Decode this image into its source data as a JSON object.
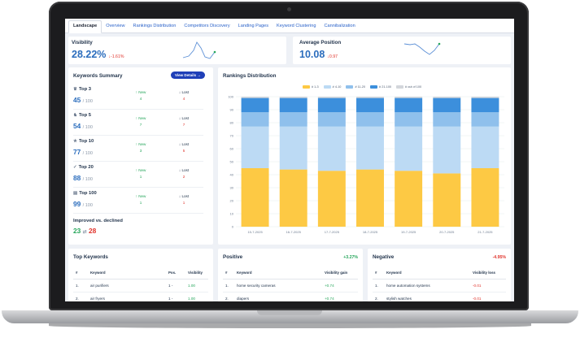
{
  "tabs": [
    "Landscape",
    "Overview",
    "Rankings Distribution",
    "Competitors Discovery",
    "Landing Pages",
    "Keyword Clustering",
    "Cannibalization"
  ],
  "visibility": {
    "label": "Visibility",
    "value": "28.22%",
    "delta": "-1.61%"
  },
  "avg_position": {
    "label": "Average Position",
    "value": "10.08",
    "delta": "0.97"
  },
  "keywords_summary": {
    "title": "Keywords Summary",
    "button": "View Details",
    "new_label": "New",
    "lost_label": "Lost",
    "rows": [
      {
        "label": "Top 3",
        "value": "45",
        "of": "/ 100",
        "new": "4",
        "lost": "4"
      },
      {
        "label": "Top 5",
        "value": "54",
        "of": "/ 100",
        "new": "7",
        "lost": "7"
      },
      {
        "label": "Top 10",
        "value": "77",
        "of": "/ 100",
        "new": "3",
        "lost": "5"
      },
      {
        "label": "Top 20",
        "value": "88",
        "of": "/ 100",
        "new": "1",
        "lost": "2"
      },
      {
        "label": "Top 100",
        "value": "99",
        "of": "/ 100",
        "new": "1",
        "lost": "1"
      }
    ],
    "improved_label": "Improved vs. declined",
    "improved": "23",
    "declined": "28"
  },
  "rankings": {
    "title": "Rankings Distribution"
  },
  "chart_data": {
    "type": "bar",
    "stacked": true,
    "categories": [
      "15-7-2025",
      "16-7-2025",
      "17-7-2025",
      "18-7-2025",
      "19-7-2025",
      "20-7-2025",
      "21-7-2025"
    ],
    "legend": [
      "# 1-3",
      "# 4-10",
      "# 11-20",
      "# 21-100",
      "# out of 100"
    ],
    "colors": [
      "#fdc944",
      "#bcdaf4",
      "#8fc0ec",
      "#3c8fdc",
      "#d3d6db"
    ],
    "series": [
      {
        "name": "# 1-3",
        "values": [
          45,
          44,
          43,
          44,
          43,
          41,
          45
        ]
      },
      {
        "name": "# 4-10",
        "values": [
          32,
          33,
          34,
          33,
          34,
          36,
          32
        ]
      },
      {
        "name": "# 11-20",
        "values": [
          11,
          11,
          11,
          11,
          11,
          11,
          11
        ]
      },
      {
        "name": "# 21-100",
        "values": [
          11,
          11,
          11,
          11,
          11,
          11,
          11
        ]
      },
      {
        "name": "# out of 100",
        "values": [
          1,
          1,
          1,
          1,
          1,
          1,
          1
        ]
      }
    ],
    "yticks": [
      0,
      10,
      20,
      30,
      40,
      50,
      60,
      70,
      80,
      90,
      100
    ],
    "ylim": [
      0,
      100
    ]
  },
  "top_keywords": {
    "title": "Top Keywords",
    "headers": [
      "#",
      "Keyword",
      "Pos.",
      "Visibility"
    ],
    "rows": [
      {
        "n": "1.",
        "kw": "air purifiers",
        "pos": "1 -",
        "vis": "1.00"
      },
      {
        "n": "2.",
        "kw": "air fryers",
        "pos": "1 -",
        "vis": "1.00"
      }
    ]
  },
  "positive": {
    "title": "Positive",
    "delta": "+3.27%",
    "headers": [
      "#",
      "Keyword",
      "Visibility gain"
    ],
    "rows": [
      {
        "n": "1.",
        "kw": "home security cameras",
        "val": "+0.74"
      },
      {
        "n": "2.",
        "kw": "diapers",
        "val": "+0.74"
      }
    ]
  },
  "negative": {
    "title": "Negative",
    "delta": "-4.95%",
    "headers": [
      "#",
      "Keyword",
      "Visibility loss"
    ],
    "rows": [
      {
        "n": "1.",
        "kw": "home automation systems",
        "val": "-0.01"
      },
      {
        "n": "2.",
        "kw": "stylish watches",
        "val": "-0.01"
      }
    ]
  }
}
